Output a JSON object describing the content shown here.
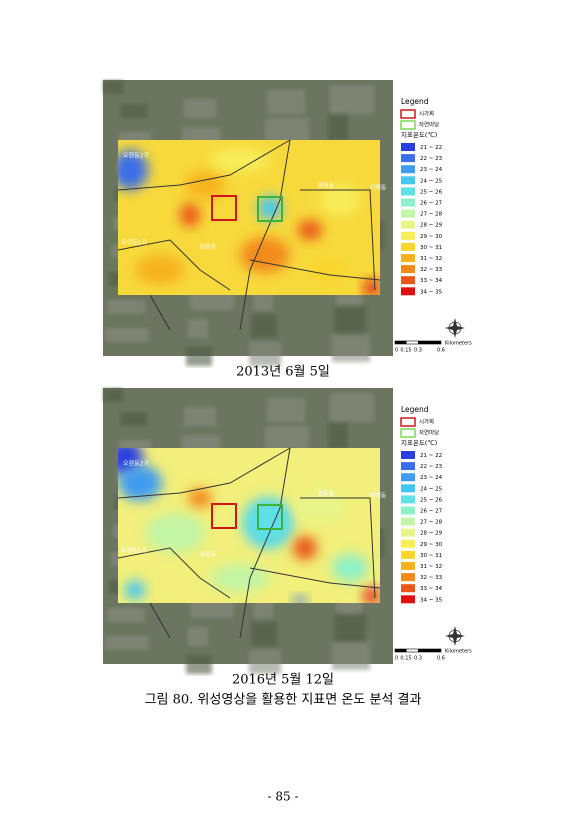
{
  "figures": [
    {
      "caption": "2013년 6월 5일"
    },
    {
      "caption": "2016년 5월 12일"
    }
  ],
  "map_labels": [
    "오현동2가",
    "오현동1가",
    "남종동",
    "명동동",
    "이매동"
  ],
  "legend": {
    "title": "Legend",
    "urban": "시가화",
    "nature": "자연마당",
    "temp_title": "지표온도(℃)",
    "classes": [
      {
        "label": "21 ~ 22",
        "color": "#2b3fe0"
      },
      {
        "label": "22 ~ 23",
        "color": "#3b6ee8"
      },
      {
        "label": "23 ~ 24",
        "color": "#3f9cf0"
      },
      {
        "label": "24 ~ 25",
        "color": "#44c6f2"
      },
      {
        "label": "25 ~ 26",
        "color": "#5fe0e6"
      },
      {
        "label": "26 ~ 27",
        "color": "#8ef0c8"
      },
      {
        "label": "27 ~ 28",
        "color": "#c2f5a6"
      },
      {
        "label": "28 ~ 29",
        "color": "#e8f58a"
      },
      {
        "label": "29 ~ 30",
        "color": "#f7ee5a"
      },
      {
        "label": "30 ~ 31",
        "color": "#f9d62c"
      },
      {
        "label": "31 ~ 32",
        "color": "#f7b21e"
      },
      {
        "label": "32 ~ 33",
        "color": "#f28a1a"
      },
      {
        "label": "33 ~ 34",
        "color": "#ea5518"
      },
      {
        "label": "34 ~ 35",
        "color": "#e01010"
      }
    ],
    "scale_unit": "Kilometers",
    "scale_ticks": [
      "0",
      "0.15",
      "0.3",
      "0.6"
    ]
  },
  "figure_caption": "그림 80. 위성영상을 활용한 지표면 온도 분석 결과",
  "page_number": "- 85 -"
}
